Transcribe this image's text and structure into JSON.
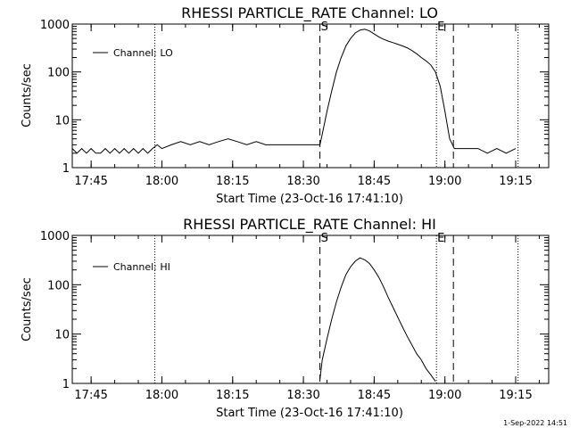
{
  "timestamp": "1-Sep-2022 14:51",
  "chart_data": [
    {
      "type": "line",
      "title": "RHESSI PARTICLE_RATE Channel: LO",
      "xlabel": "Start Time (23-Oct-16 17:41:10)",
      "ylabel": "Counts/sec",
      "y_scale": "log",
      "xlim": [
        "17:41",
        "19:22"
      ],
      "ylim": [
        1,
        1000
      ],
      "x_ticks": [
        "17:45",
        "18:00",
        "18:15",
        "18:30",
        "18:45",
        "19:00",
        "19:15"
      ],
      "y_ticks": [
        "1",
        "10",
        "100",
        "1000"
      ],
      "legend": {
        "label": "Channel: LO",
        "placement": "top-left"
      },
      "markers": {
        "start": {
          "label": "S",
          "time": "18:33.5"
        },
        "end": {
          "label": "E",
          "time": "19:01.8"
        }
      },
      "dotted_lines": [
        "17:58.5",
        "18:58.2",
        "19:15.5"
      ],
      "series": [
        {
          "name": "Channel: LO",
          "x": [
            "17:41",
            "17:42",
            "17:43",
            "17:44",
            "17:45",
            "17:46",
            "17:47",
            "17:48",
            "17:49",
            "17:50",
            "17:51",
            "17:52",
            "17:53",
            "17:54",
            "17:55",
            "17:56",
            "17:57",
            "17:58",
            "17:59",
            "18:00",
            "18:02",
            "18:04",
            "18:06",
            "18:08",
            "18:10",
            "18:12",
            "18:14",
            "18:16",
            "18:18",
            "18:20",
            "18:22",
            "18:24",
            "18:26",
            "18:28",
            "18:30",
            "18:32",
            "18:33.5",
            "18:34",
            "18:35",
            "18:36",
            "18:37",
            "18:38",
            "18:39",
            "18:40",
            "18:41",
            "18:42",
            "18:43",
            "18:44",
            "18:45",
            "18:46",
            "18:47",
            "18:48",
            "18:49",
            "18:50",
            "18:51",
            "18:52",
            "18:53",
            "18:54",
            "18:55",
            "18:56",
            "18:57",
            "18:58",
            "18:59",
            "19:00",
            "19:01",
            "19:02",
            "19:03",
            "19:05",
            "19:07",
            "19:09",
            "19:11",
            "19:13",
            "19:15"
          ],
          "y": [
            2.5,
            2.0,
            2.5,
            2.0,
            2.5,
            2.0,
            2.0,
            2.5,
            2.0,
            2.5,
            2.0,
            2.5,
            2.0,
            2.5,
            2.0,
            2.5,
            2.0,
            2.5,
            3.0,
            2.5,
            3.0,
            3.5,
            3.0,
            3.5,
            3.0,
            3.5,
            4.0,
            3.5,
            3.0,
            3.5,
            3.0,
            3.0,
            3.0,
            3.0,
            3.0,
            3.0,
            3.0,
            5,
            15,
            40,
            100,
            200,
            350,
            500,
            650,
            750,
            780,
            720,
            620,
            540,
            480,
            440,
            410,
            380,
            350,
            320,
            280,
            240,
            200,
            170,
            140,
            100,
            50,
            15,
            4,
            2.5,
            2.5,
            2.5,
            2.5,
            2.0,
            2.5,
            2.0,
            2.5
          ]
        }
      ]
    },
    {
      "type": "line",
      "title": "RHESSI PARTICLE_RATE Channel: HI",
      "xlabel": "Start Time (23-Oct-16 17:41:10)",
      "ylabel": "Counts/sec",
      "y_scale": "log",
      "xlim": [
        "17:41",
        "19:22"
      ],
      "ylim": [
        1,
        1000
      ],
      "x_ticks": [
        "17:45",
        "18:00",
        "18:15",
        "18:30",
        "18:45",
        "19:00",
        "19:15"
      ],
      "y_ticks": [
        "1",
        "10",
        "100",
        "1000"
      ],
      "legend": {
        "label": "Channel: HI",
        "placement": "top-left"
      },
      "markers": {
        "start": {
          "label": "S",
          "time": "18:33.5"
        },
        "end": {
          "label": "E",
          "time": "19:01.8"
        }
      },
      "dotted_lines": [
        "17:58.5",
        "18:58.2",
        "19:15.5"
      ],
      "series": [
        {
          "name": "Channel: HI",
          "x": [
            "18:33.5",
            "18:34",
            "18:35",
            "18:36",
            "18:37",
            "18:38",
            "18:39",
            "18:40",
            "18:41",
            "18:42",
            "18:43",
            "18:44",
            "18:45",
            "18:46",
            "18:47",
            "18:48",
            "18:49",
            "18:50",
            "18:51",
            "18:52",
            "18:53",
            "18:54",
            "18:55",
            "18:56",
            "18:57",
            "18:58"
          ],
          "y": [
            1.2,
            3,
            8,
            20,
            45,
            90,
            160,
            230,
            300,
            350,
            320,
            270,
            200,
            140,
            90,
            55,
            35,
            22,
            14,
            9,
            6,
            4,
            3,
            2,
            1.5,
            1.1
          ]
        }
      ]
    }
  ]
}
